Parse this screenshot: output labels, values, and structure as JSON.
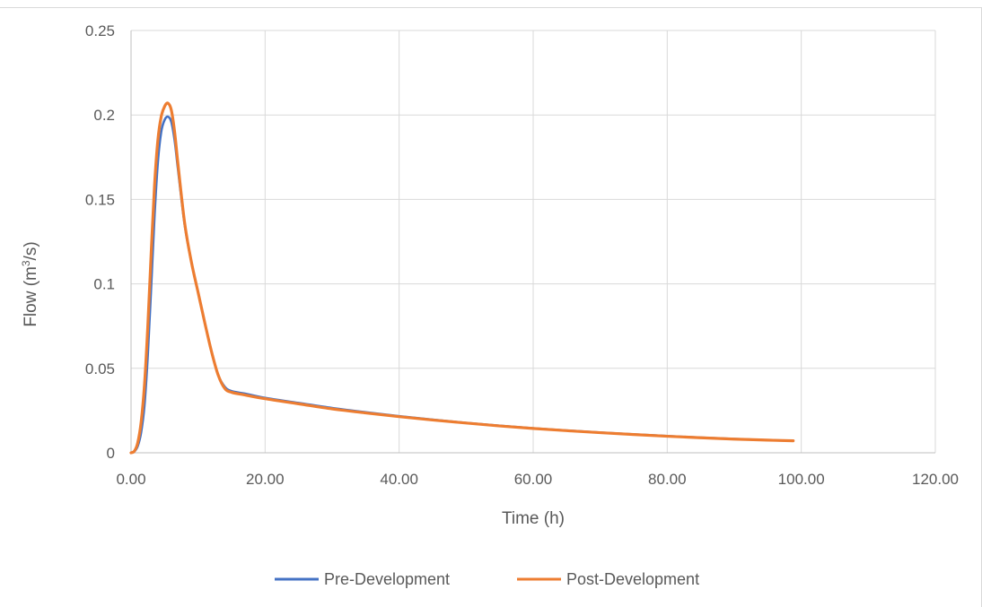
{
  "chart_data": {
    "type": "line",
    "title": "",
    "xlabel": "Time (h)",
    "ylabel_prefix": "Flow (m",
    "ylabel_sup": "3",
    "ylabel_suffix": "/s)",
    "xlim": [
      0,
      120
    ],
    "ylim": [
      0,
      0.25
    ],
    "grid": true,
    "legend_position": "bottom",
    "x_ticks": [
      0,
      20,
      40,
      60,
      80,
      100,
      120
    ],
    "x_tick_labels": [
      "0.00",
      "20.00",
      "40.00",
      "60.00",
      "80.00",
      "100.00",
      "120.00"
    ],
    "y_ticks": [
      0,
      0.05,
      0.1,
      0.15,
      0.2,
      0.25
    ],
    "y_tick_labels": [
      "0",
      "0.05",
      "0.1",
      "0.15",
      "0.2",
      "0.25"
    ],
    "series": [
      {
        "name": "Pre-Development",
        "color": "#4472c4",
        "x": [
          0,
          0.5,
          1,
          1.5,
          2,
          2.5,
          3,
          3.5,
          4,
          4.5,
          5,
          5.5,
          6,
          6.5,
          7,
          8,
          9,
          10,
          11,
          12,
          13,
          14,
          15,
          17,
          20,
          25,
          30,
          35,
          40,
          45,
          50,
          55,
          60,
          65,
          70,
          75,
          80,
          85,
          90,
          95,
          98.8
        ],
        "y": [
          0,
          0.0008,
          0.004,
          0.012,
          0.028,
          0.058,
          0.098,
          0.14,
          0.172,
          0.19,
          0.197,
          0.199,
          0.196,
          0.185,
          0.168,
          0.135,
          0.113,
          0.095,
          0.077,
          0.06,
          0.046,
          0.039,
          0.0365,
          0.035,
          0.0325,
          0.0295,
          0.0265,
          0.024,
          0.0217,
          0.0196,
          0.0177,
          0.016,
          0.0145,
          0.0132,
          0.012,
          0.0109,
          0.0099,
          0.009,
          0.0082,
          0.0075,
          0.0071
        ]
      },
      {
        "name": "Post-Development",
        "color": "#ed7d31",
        "x": [
          0,
          0.5,
          1,
          1.5,
          2,
          2.5,
          3,
          3.5,
          4,
          4.5,
          5,
          5.5,
          6,
          6.5,
          7,
          8,
          9,
          10,
          11,
          12,
          13,
          14,
          15,
          17,
          20,
          25,
          30,
          35,
          40,
          45,
          50,
          55,
          60,
          65,
          70,
          75,
          80,
          85,
          90,
          95,
          98.8
        ],
        "y": [
          0,
          0.001,
          0.006,
          0.018,
          0.04,
          0.075,
          0.118,
          0.158,
          0.185,
          0.199,
          0.205,
          0.207,
          0.203,
          0.19,
          0.171,
          0.136,
          0.113,
          0.095,
          0.077,
          0.06,
          0.046,
          0.038,
          0.0358,
          0.0342,
          0.032,
          0.029,
          0.026,
          0.0236,
          0.0214,
          0.0194,
          0.0176,
          0.0159,
          0.0144,
          0.0131,
          0.0119,
          0.0108,
          0.0098,
          0.0089,
          0.0081,
          0.0075,
          0.0071
        ]
      }
    ]
  }
}
